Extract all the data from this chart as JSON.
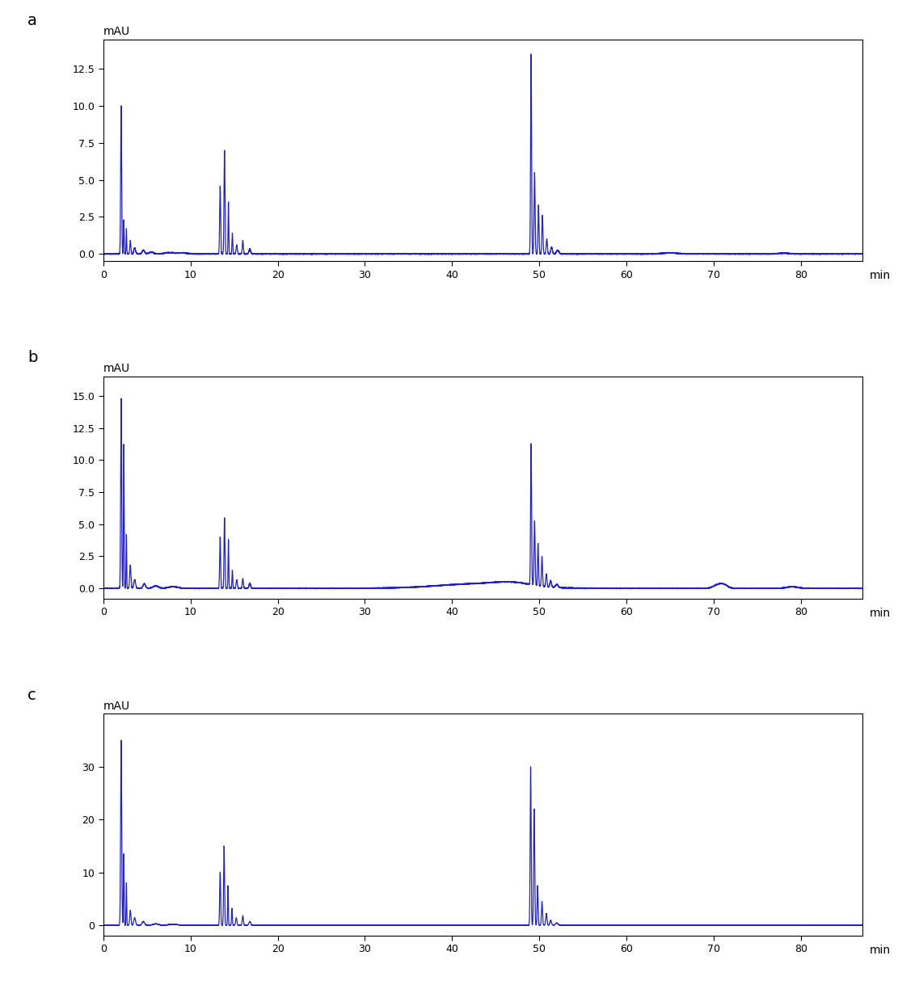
{
  "line_color": "#2222CC",
  "line_width": 0.9,
  "background_color": "#ffffff",
  "xlabel": "min",
  "ylabel": "mAU",
  "xlim": [
    0,
    87
  ],
  "panel_labels": [
    "a",
    "b",
    "c"
  ],
  "panel_label_fontsize": 14,
  "axis_fontsize": 10,
  "tick_fontsize": 9,
  "panels": [
    {
      "ylim": [
        -0.5,
        14.5
      ],
      "yticks": [
        0.0,
        2.5,
        5.0,
        7.5,
        10.0,
        12.5
      ],
      "xticks": [
        0,
        10,
        20,
        30,
        40,
        50,
        60,
        70,
        80
      ]
    },
    {
      "ylim": [
        -0.8,
        16.5
      ],
      "yticks": [
        0.0,
        2.5,
        5.0,
        7.5,
        10.0,
        12.5,
        15.0
      ],
      "xticks": [
        0,
        10,
        20,
        30,
        40,
        50,
        60,
        70,
        80
      ]
    },
    {
      "ylim": [
        -2,
        40
      ],
      "yticks": [
        0,
        10,
        20,
        30
      ],
      "xticks": [
        0,
        10,
        20,
        30,
        40,
        50,
        60,
        70,
        80
      ]
    }
  ]
}
